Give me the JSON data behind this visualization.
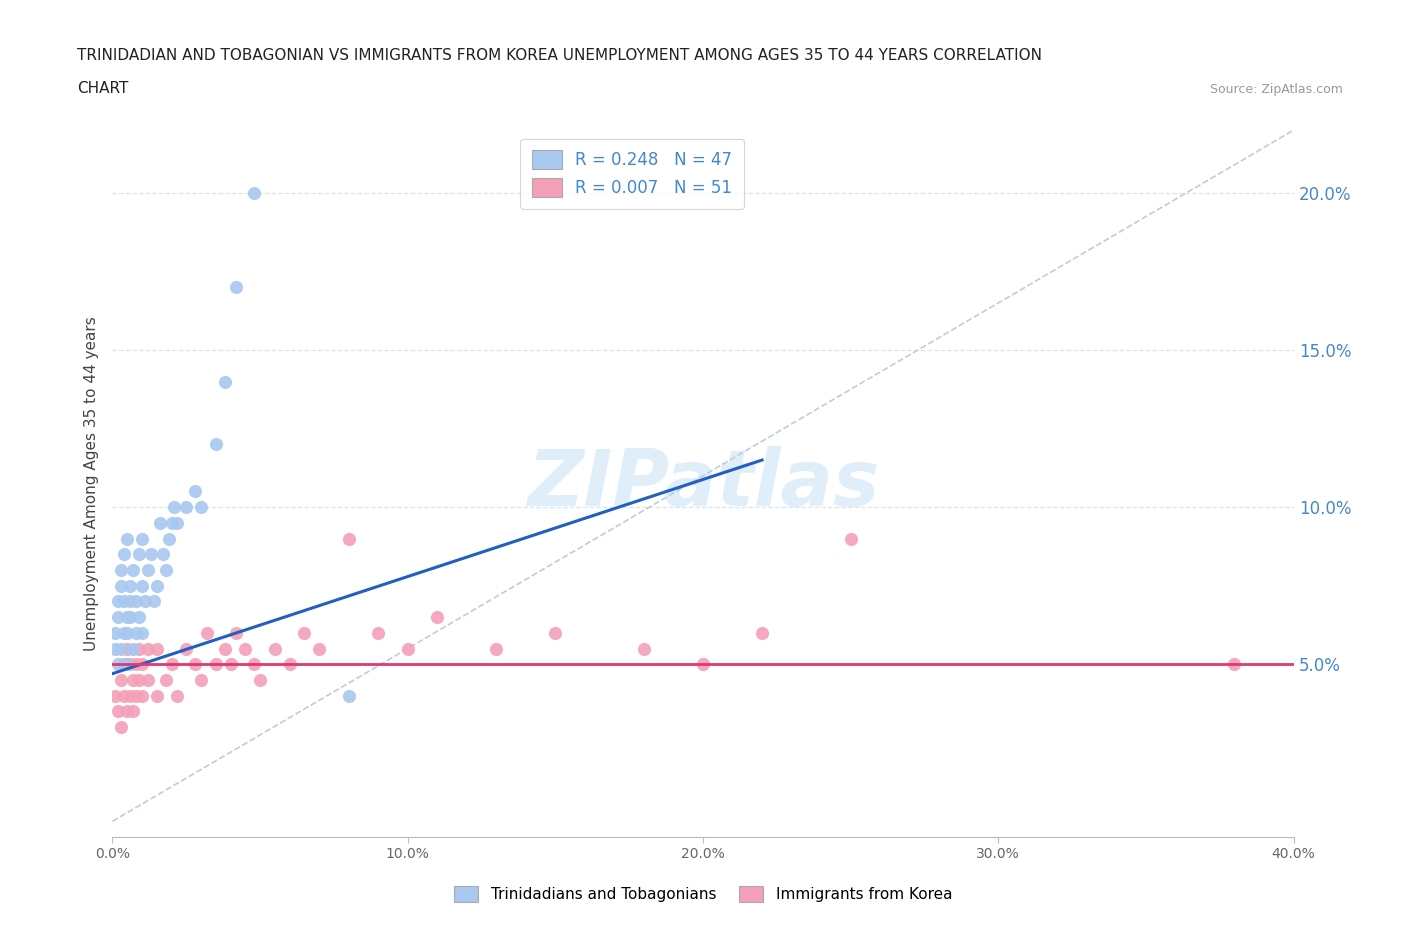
{
  "title_line1": "TRINIDADIAN AND TOBAGONIAN VS IMMIGRANTS FROM KOREA UNEMPLOYMENT AMONG AGES 35 TO 44 YEARS CORRELATION",
  "title_line2": "CHART",
  "source": "Source: ZipAtlas.com",
  "ylabel": "Unemployment Among Ages 35 to 44 years",
  "watermark": "ZIPatlas",
  "legend_r1": "R = 0.248",
  "legend_n1": "N = 47",
  "legend_r2": "R = 0.007",
  "legend_n2": "N = 51",
  "legend_label1": "Trinidadians and Tobagonians",
  "legend_label2": "Immigrants from Korea",
  "xlim": [
    0.0,
    0.4
  ],
  "ylim": [
    -0.005,
    0.22
  ],
  "color_blue": "#a8c8f0",
  "color_pink": "#f4a0b8",
  "color_blue_line": "#2060c0",
  "color_pink_line": "#e03870",
  "color_dashed_line": "#c0ccd8",
  "grid_color": "#d8e4f0",
  "right_axis_color": "#4488cc",
  "ytick_labels": [
    "5.0%",
    "10.0%",
    "15.0%",
    "20.0%"
  ],
  "ytick_values": [
    0.05,
    0.1,
    0.15,
    0.2
  ],
  "xtick_labels": [
    "0.0%",
    "10.0%",
    "20.0%",
    "30.0%",
    "40.0%"
  ],
  "xtick_values": [
    0.0,
    0.1,
    0.2,
    0.3,
    0.4
  ],
  "blue_x": [
    0.001,
    0.001,
    0.002,
    0.002,
    0.002,
    0.003,
    0.003,
    0.003,
    0.004,
    0.004,
    0.004,
    0.005,
    0.005,
    0.005,
    0.005,
    0.006,
    0.006,
    0.006,
    0.007,
    0.007,
    0.008,
    0.008,
    0.009,
    0.009,
    0.01,
    0.01,
    0.01,
    0.011,
    0.012,
    0.013,
    0.014,
    0.015,
    0.016,
    0.017,
    0.018,
    0.019,
    0.02,
    0.021,
    0.022,
    0.025,
    0.028,
    0.03,
    0.035,
    0.038,
    0.042,
    0.048,
    0.08
  ],
  "blue_y": [
    0.055,
    0.06,
    0.065,
    0.05,
    0.07,
    0.055,
    0.075,
    0.08,
    0.06,
    0.07,
    0.085,
    0.05,
    0.06,
    0.065,
    0.09,
    0.065,
    0.07,
    0.075,
    0.055,
    0.08,
    0.06,
    0.07,
    0.065,
    0.085,
    0.06,
    0.075,
    0.09,
    0.07,
    0.08,
    0.085,
    0.07,
    0.075,
    0.095,
    0.085,
    0.08,
    0.09,
    0.095,
    0.1,
    0.095,
    0.1,
    0.105,
    0.1,
    0.12,
    0.14,
    0.17,
    0.2,
    0.04
  ],
  "pink_x": [
    0.001,
    0.002,
    0.003,
    0.003,
    0.004,
    0.004,
    0.005,
    0.005,
    0.006,
    0.006,
    0.007,
    0.007,
    0.008,
    0.008,
    0.009,
    0.009,
    0.01,
    0.01,
    0.012,
    0.012,
    0.015,
    0.015,
    0.018,
    0.02,
    0.022,
    0.025,
    0.028,
    0.03,
    0.032,
    0.035,
    0.038,
    0.04,
    0.042,
    0.045,
    0.048,
    0.05,
    0.055,
    0.06,
    0.065,
    0.07,
    0.08,
    0.09,
    0.1,
    0.11,
    0.13,
    0.15,
    0.18,
    0.2,
    0.22,
    0.25,
    0.38
  ],
  "pink_y": [
    0.04,
    0.035,
    0.03,
    0.045,
    0.04,
    0.05,
    0.035,
    0.055,
    0.04,
    0.05,
    0.035,
    0.045,
    0.04,
    0.05,
    0.045,
    0.055,
    0.04,
    0.05,
    0.045,
    0.055,
    0.04,
    0.055,
    0.045,
    0.05,
    0.04,
    0.055,
    0.05,
    0.045,
    0.06,
    0.05,
    0.055,
    0.05,
    0.06,
    0.055,
    0.05,
    0.045,
    0.055,
    0.05,
    0.06,
    0.055,
    0.09,
    0.06,
    0.055,
    0.065,
    0.055,
    0.06,
    0.055,
    0.05,
    0.06,
    0.09,
    0.05
  ],
  "blue_line_x": [
    0.0,
    0.22
  ],
  "blue_line_y": [
    0.047,
    0.115
  ],
  "pink_line_x": [
    0.0,
    0.4
  ],
  "pink_line_y": [
    0.05,
    0.05
  ],
  "dash_line_x": [
    0.0,
    0.4
  ],
  "dash_line_y": [
    0.0,
    0.22
  ]
}
